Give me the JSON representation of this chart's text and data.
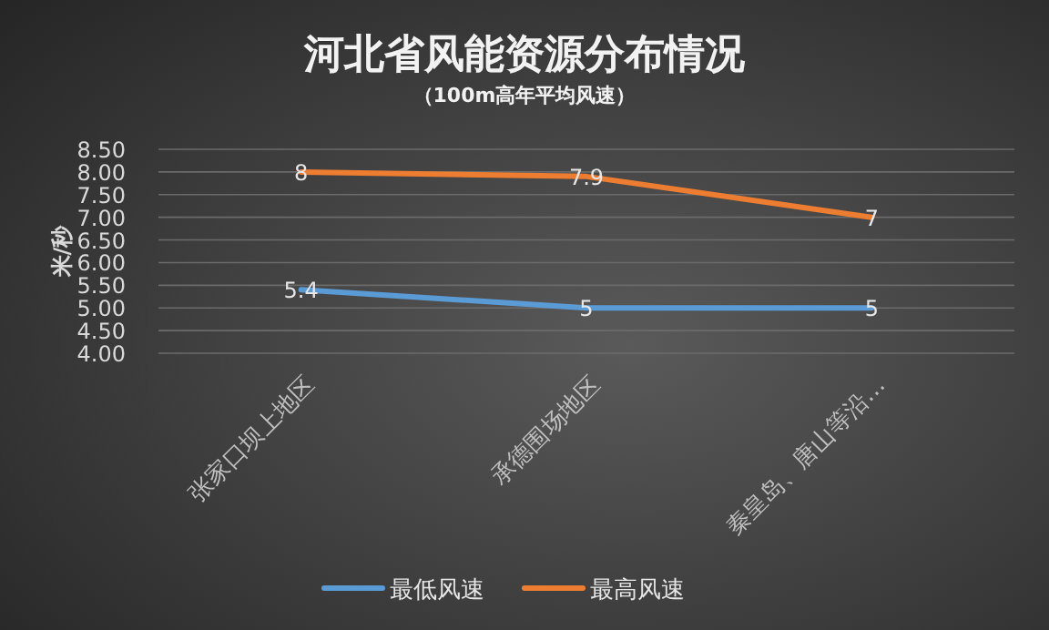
{
  "chart_data": {
    "type": "line",
    "title": "河北省风能资源分布情况",
    "subtitle": "（100m高年平均风速）",
    "ylabel": "米/秒",
    "categories": [
      "张家口坝上地区",
      "承德围场地区",
      "秦皇岛、唐山等沿…"
    ],
    "series": [
      {
        "name": "最低风速",
        "color": "#5b9bd5",
        "values": [
          5.4,
          5,
          5
        ]
      },
      {
        "name": "最高风速",
        "color": "#ed7d31",
        "values": [
          8,
          7.9,
          7
        ]
      }
    ],
    "ylim": [
      4,
      8.5
    ],
    "yticks": [
      {
        "value": 4,
        "label": "4.00"
      },
      {
        "value": 4.5,
        "label": "4.50"
      },
      {
        "value": 5,
        "label": "5.00"
      },
      {
        "value": 5.5,
        "label": "5.50"
      },
      {
        "value": 6,
        "label": "6.00"
      },
      {
        "value": 6.5,
        "label": "6.50"
      },
      {
        "value": 7,
        "label": "7.00"
      },
      {
        "value": 7.5,
        "label": "7.50"
      },
      {
        "value": 8,
        "label": "8.00"
      },
      {
        "value": 8.5,
        "label": "8.50"
      }
    ],
    "grid": "y",
    "legend": "bottom",
    "data_labels": true,
    "marker": "none",
    "line_style": "solid"
  }
}
